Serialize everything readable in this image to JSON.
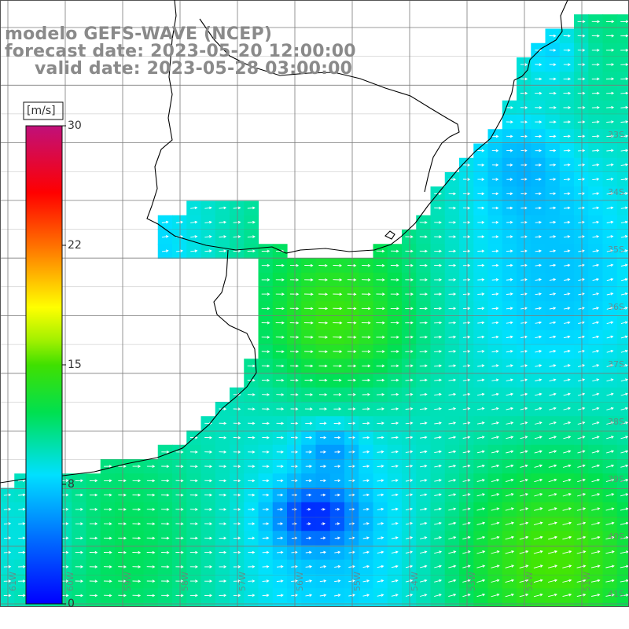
{
  "title": {
    "line1": "modelo GEFS-WAVE (NCEP)",
    "line2": "forecast date: 2023-05-20 12:00:00",
    "line3": "valid date: 2023-05-28 03:00:00"
  },
  "colorbar": {
    "units": "[m/s]",
    "ticks": [
      "30",
      "22",
      "15",
      "8",
      "0"
    ]
  },
  "lat_labels": [
    "33S",
    "34S",
    "35S",
    "36S",
    "37S",
    "38S",
    "39S",
    "40S",
    "41S"
  ],
  "lon_labels": [
    "61W",
    "60W",
    "59W",
    "58W",
    "57W",
    "56W",
    "55W",
    "54W",
    "53W",
    "52W",
    "51W"
  ],
  "colors": {
    "ocean_low": "#0033ff",
    "ocean_mid": "#00d5ff",
    "ocean_high": "#33e633",
    "coast": "#000000",
    "grid": "#7a7a7a",
    "title": "#8a8a8a"
  }
}
